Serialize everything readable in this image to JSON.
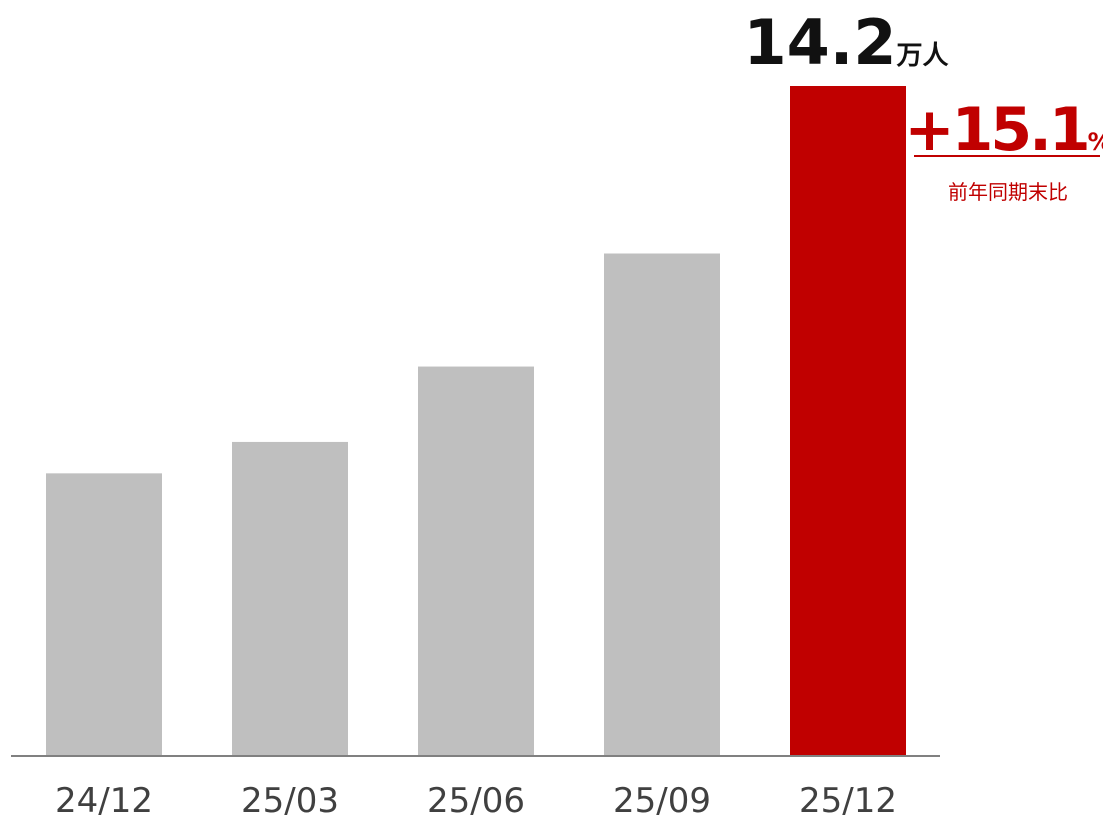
{
  "chart_data": {
    "type": "bar",
    "categories": [
      "24/12",
      "25/03",
      "25/06",
      "25/09",
      "25/12"
    ],
    "values": [
      12.35,
      12.5,
      12.86,
      13.4,
      14.2
    ],
    "colors": [
      "#bfbfbf",
      "#bfbfbf",
      "#bfbfbf",
      "#bfbfbf",
      "#c00000"
    ],
    "ylim": [
      11,
      14.2
    ],
    "value_unit": "万人",
    "change": "+15.1",
    "change_unit": "%",
    "change_note": "前年同期末比"
  }
}
